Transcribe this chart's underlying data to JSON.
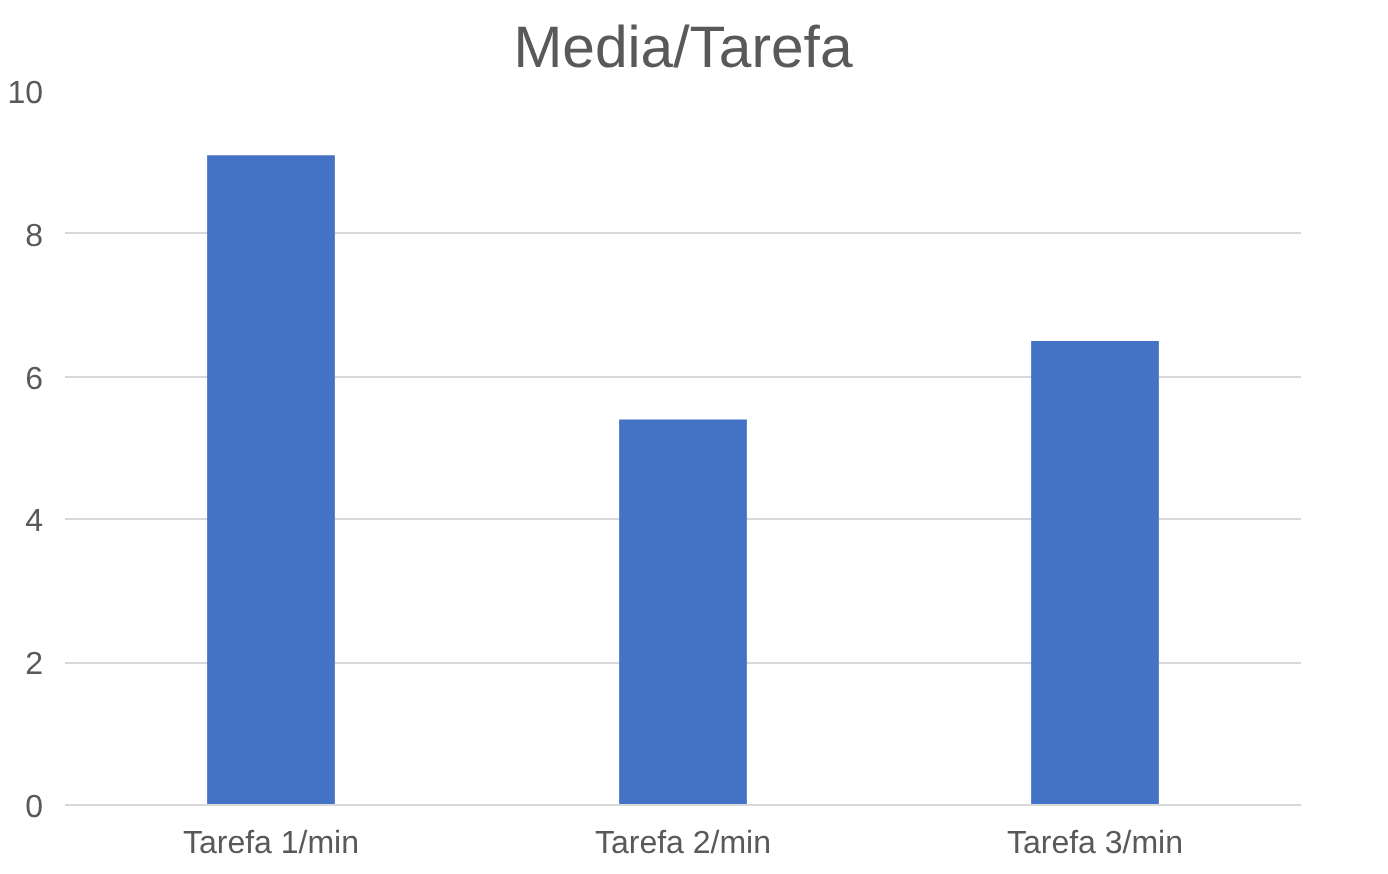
{
  "chart_data": {
    "type": "bar",
    "title": "Media/Tarefa",
    "categories": [
      "Tarefa 1/min",
      "Tarefa 2/min",
      "Tarefa 3/min"
    ],
    "values": [
      9.1,
      5.4,
      6.5
    ],
    "color": "#4472c4",
    "ylim": [
      0,
      10
    ],
    "yticks": [
      0,
      2,
      4,
      6,
      8,
      10
    ],
    "grid": "y"
  }
}
